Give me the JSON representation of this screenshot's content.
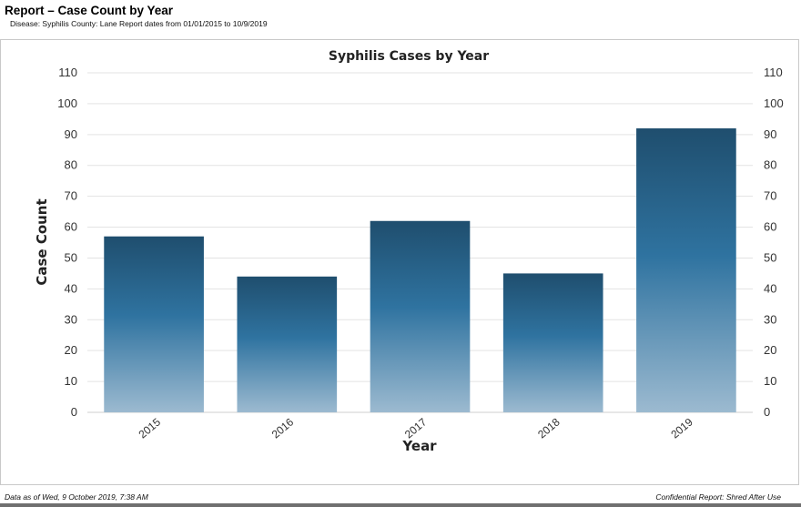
{
  "report": {
    "title": "Report – Case Count by Year",
    "subtitle": "Disease: Syphilis  County: Lane  Report dates from 01/01/2015 to 10/9/2019"
  },
  "footer": {
    "left": "Data as of Wed, 9 October  2019, 7:38 AM",
    "right": "Confidential Report: Shred After Use"
  },
  "chart_data": {
    "type": "bar",
    "title": "Syphilis Cases by Year",
    "xlabel": "Year",
    "ylabel": "Case Count",
    "categories": [
      "2015",
      "2016",
      "2017",
      "2018",
      "2019"
    ],
    "values": [
      57,
      44,
      62,
      45,
      92
    ],
    "ylim": [
      0,
      110
    ],
    "yticks": [
      0,
      10,
      20,
      30,
      40,
      50,
      60,
      70,
      80,
      90,
      100,
      110
    ],
    "grid": true,
    "legend": "none",
    "secondary_y_axis": true,
    "colors": {
      "bar_top": "#1f4e6e",
      "bar_mid": "#2f73a0",
      "bar_bottom": "#9cbad0",
      "grid": "#e3e3e3"
    }
  }
}
